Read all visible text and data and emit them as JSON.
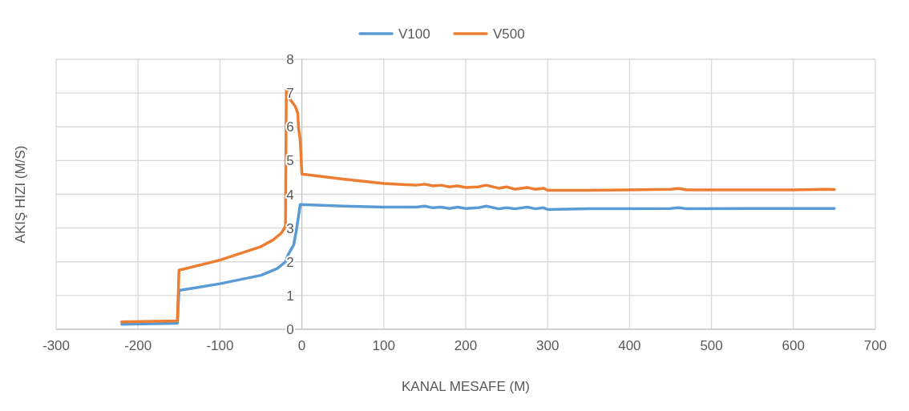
{
  "chart_data": {
    "type": "line",
    "xlabel": "KANAL MESAFE (M)",
    "ylabel": "AKIŞ HIZI (M/S)",
    "xlim": [
      -300,
      700
    ],
    "xticks": [
      -300,
      -200,
      -100,
      0,
      100,
      200,
      300,
      400,
      500,
      600,
      700
    ],
    "ylim": [
      0,
      8
    ],
    "yticks": [
      0,
      1,
      2,
      3,
      4,
      5,
      6,
      7,
      8
    ],
    "grid": true,
    "legend": "top",
    "marker": "none",
    "line_style": "solid",
    "series": [
      {
        "name": "V100",
        "color": "#5b9bd5",
        "x": [
          -220,
          -152,
          -150,
          -100,
          -50,
          -30,
          -20,
          -17,
          -10,
          -7,
          -5,
          -2,
          50,
          100,
          140,
          150,
          160,
          170,
          180,
          190,
          200,
          215,
          225,
          240,
          250,
          260,
          275,
          285,
          295,
          300,
          350,
          400,
          450,
          460,
          470,
          550,
          600,
          650
        ],
        "values": [
          0.15,
          0.18,
          1.15,
          1.35,
          1.6,
          1.8,
          2.0,
          2.2,
          2.5,
          2.9,
          3.2,
          3.7,
          3.65,
          3.62,
          3.62,
          3.65,
          3.6,
          3.62,
          3.58,
          3.62,
          3.58,
          3.6,
          3.65,
          3.57,
          3.6,
          3.57,
          3.62,
          3.57,
          3.6,
          3.55,
          3.57,
          3.57,
          3.58,
          3.6,
          3.57,
          3.58,
          3.58,
          3.58
        ]
      },
      {
        "name": "V500",
        "color": "#ed7d31",
        "x": [
          -220,
          -152,
          -150,
          -100,
          -50,
          -35,
          -25,
          -20,
          -19,
          -15,
          -14,
          -8,
          -5,
          -4,
          -2,
          0,
          50,
          100,
          140,
          150,
          160,
          170,
          180,
          190,
          200,
          215,
          225,
          240,
          250,
          260,
          275,
          285,
          295,
          300,
          350,
          400,
          450,
          460,
          470,
          550,
          600,
          640,
          650
        ],
        "values": [
          0.22,
          0.25,
          1.75,
          2.05,
          2.45,
          2.65,
          2.85,
          3.05,
          7.1,
          7.1,
          6.8,
          6.6,
          6.4,
          5.95,
          5.6,
          4.6,
          4.45,
          4.32,
          4.27,
          4.3,
          4.25,
          4.27,
          4.22,
          4.25,
          4.2,
          4.22,
          4.27,
          4.18,
          4.22,
          4.15,
          4.2,
          4.15,
          4.18,
          4.12,
          4.12,
          4.13,
          4.15,
          4.17,
          4.13,
          4.13,
          4.13,
          4.15,
          4.14
        ]
      }
    ]
  }
}
